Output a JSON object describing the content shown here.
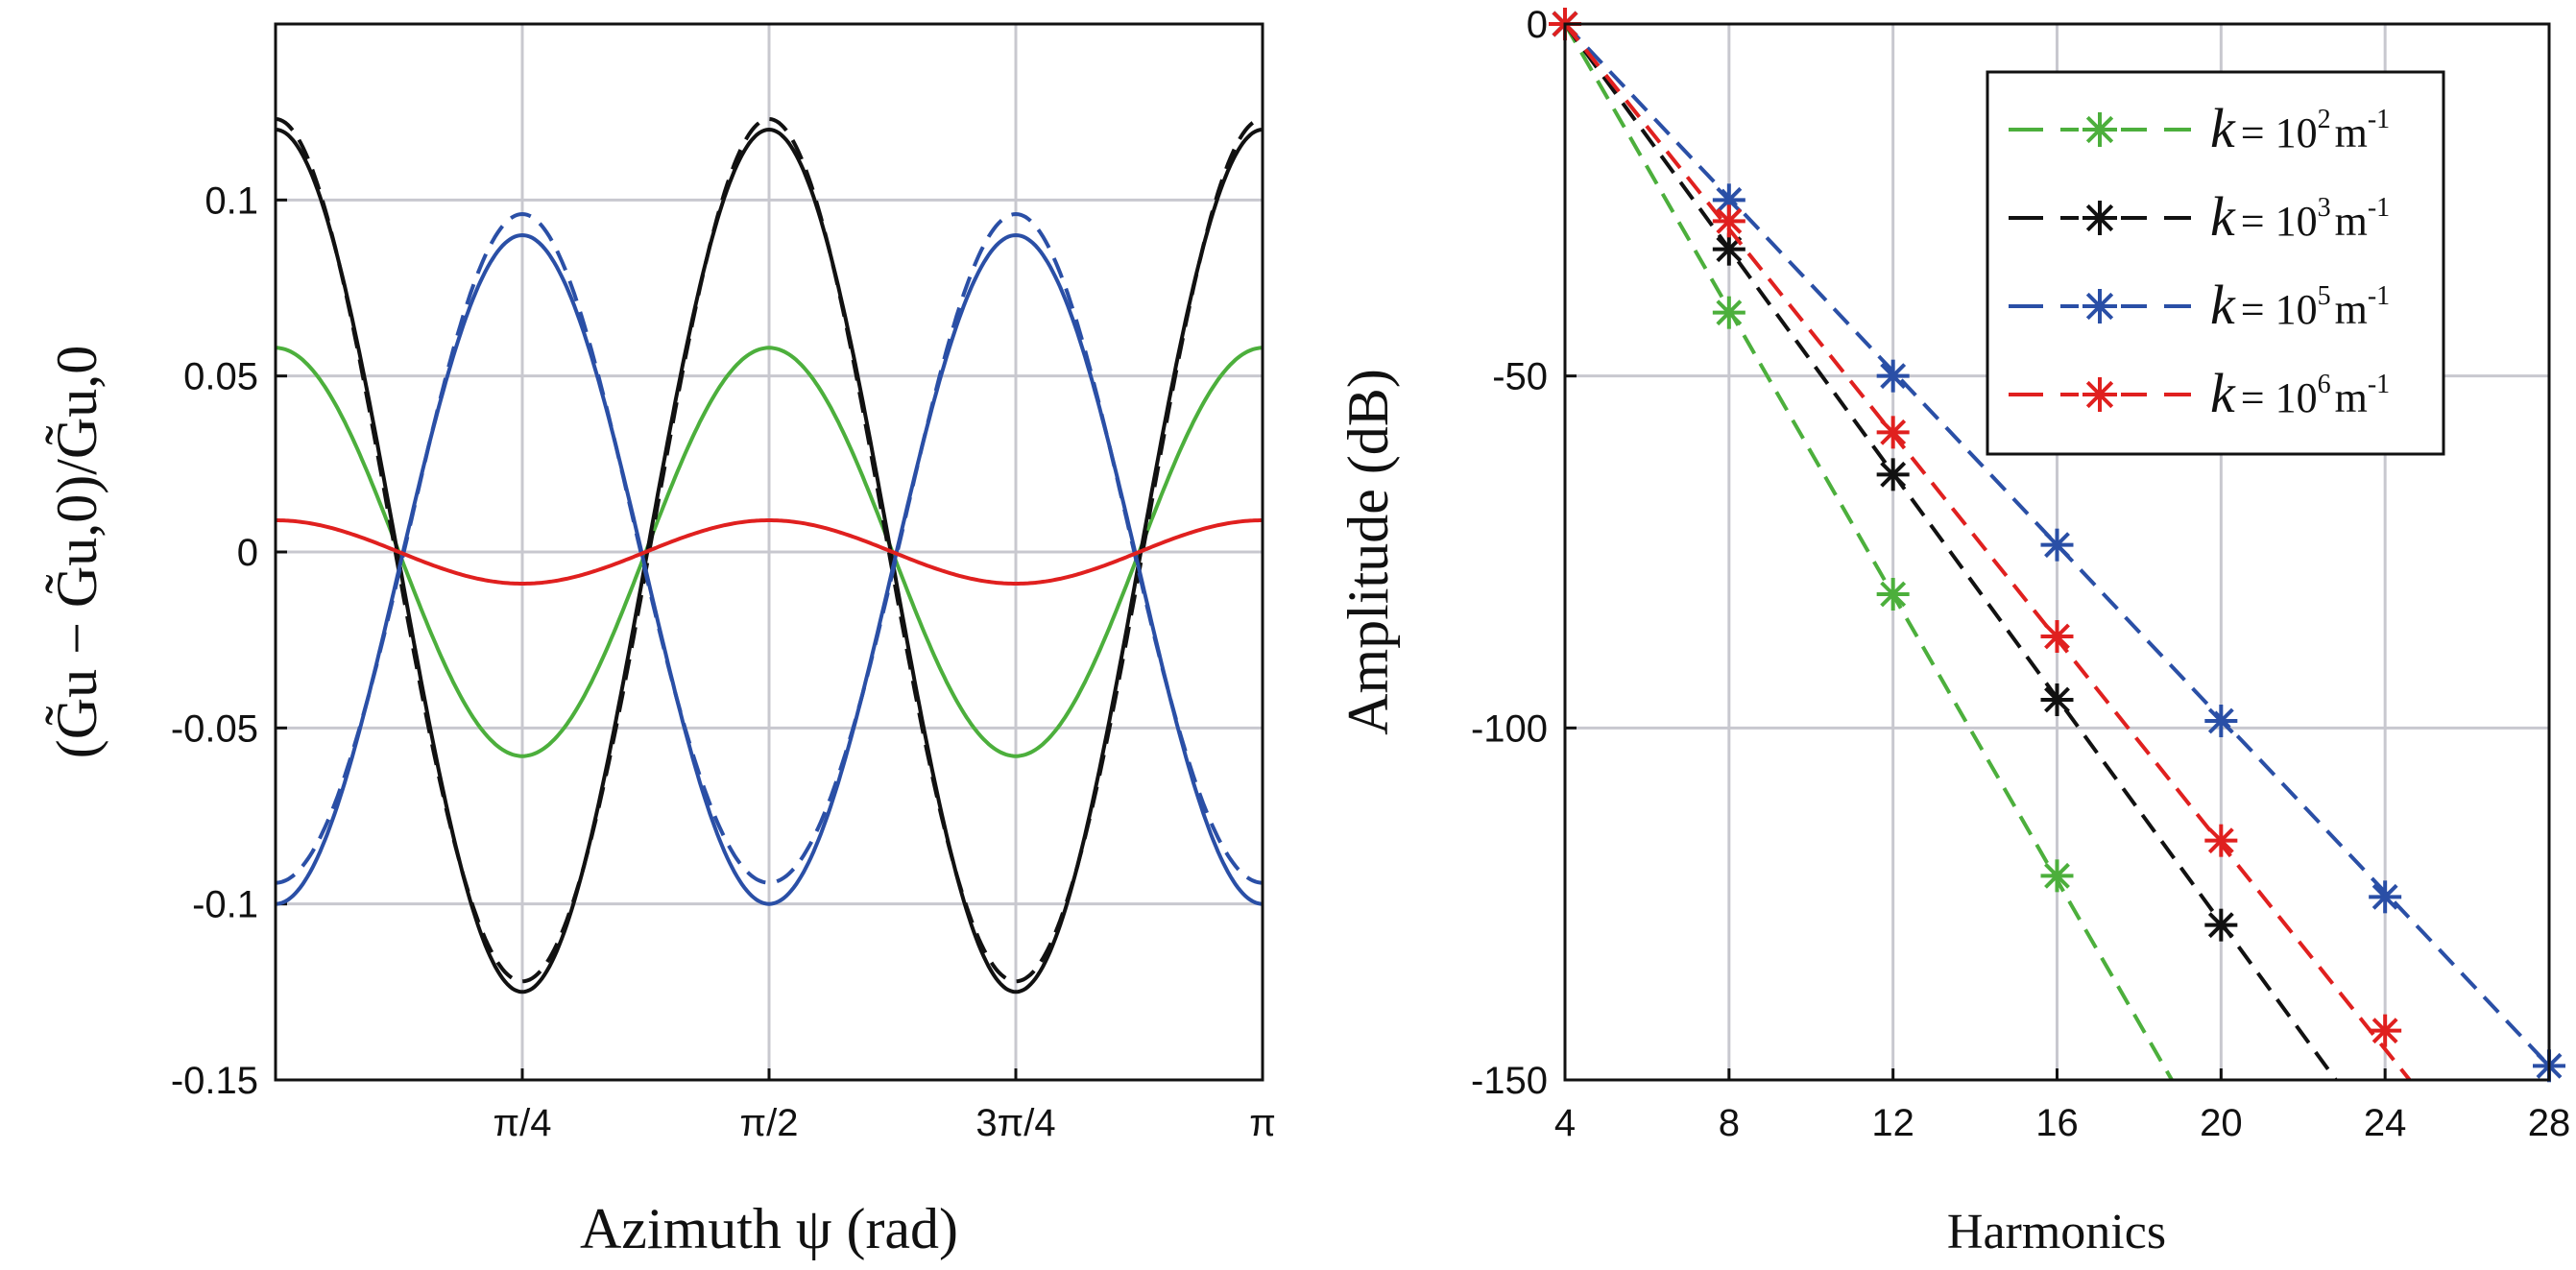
{
  "chart_data": [
    {
      "type": "line",
      "title": "",
      "xlabel": "Azimuth ψ (rad)",
      "ylabel": "(G̃u − G̃u,0)/G̃u,0",
      "xlim": [
        0,
        3.14159
      ],
      "ylim": [
        -0.15,
        0.15
      ],
      "xticks": [
        {
          "value": 0.7854,
          "label": "π/4"
        },
        {
          "value": 1.5708,
          "label": "π/2"
        },
        {
          "value": 2.3562,
          "label": "3π/4"
        },
        {
          "value": 3.14159,
          "label": "π"
        }
      ],
      "yticks": [
        {
          "value": 0.1,
          "label": "0.1"
        },
        {
          "value": 0.05,
          "label": "0.05"
        },
        {
          "value": 0,
          "label": "0"
        },
        {
          "value": -0.05,
          "label": "-0.05"
        },
        {
          "value": -0.1,
          "label": "-0.1"
        },
        {
          "value": -0.15,
          "label": "-0.15"
        }
      ],
      "grid": true,
      "series": [
        {
          "name": "k=10² solid",
          "color": "#4caf3c",
          "dash": false,
          "offset": 0,
          "amp": 0.058,
          "amp2": 0
        },
        {
          "name": "k=10³ solid",
          "color": "#111111",
          "dash": false,
          "offset": -0.0025,
          "amp": 0.1225,
          "amp2": 0
        },
        {
          "name": "k=10³ dashed",
          "color": "#111111",
          "dash": true,
          "offset": -0.0025,
          "amp": 0.1225,
          "amp2": 0.003
        },
        {
          "name": "k=10⁵ solid",
          "color": "#2a4fa6",
          "dash": false,
          "offset": -0.005,
          "amp": -0.095,
          "amp2": 0
        },
        {
          "name": "k=10⁵ dashed",
          "color": "#2a4fa6",
          "dash": true,
          "offset": -0.0025,
          "amp": -0.095,
          "amp2": 0.0035
        },
        {
          "name": "k=10⁶ solid",
          "color": "#e0201f",
          "dash": false,
          "offset": 0,
          "amp": 0.009,
          "amp2": 0
        }
      ]
    },
    {
      "type": "line",
      "title": "",
      "xlabel": "Harmonics",
      "ylabel": "Amplitude (dB)",
      "xlim": [
        4,
        28
      ],
      "ylim": [
        -150,
        0
      ],
      "xticks": [
        {
          "value": 4,
          "label": "4"
        },
        {
          "value": 8,
          "label": "8"
        },
        {
          "value": 12,
          "label": "12"
        },
        {
          "value": 16,
          "label": "16"
        },
        {
          "value": 20,
          "label": "20"
        },
        {
          "value": 24,
          "label": "24"
        },
        {
          "value": 28,
          "label": "28"
        }
      ],
      "yticks": [
        {
          "value": 0,
          "label": "0"
        },
        {
          "value": -50,
          "label": "-50"
        },
        {
          "value": -100,
          "label": "-100"
        },
        {
          "value": -150,
          "label": "-150"
        }
      ],
      "grid": true,
      "legend_position": "top-right",
      "series": [
        {
          "name": "k=10²",
          "prefix": "k",
          "eq": "= 10",
          "exp": "2",
          "unit": "m",
          "unitexp": "-1",
          "color": "#4caf3c",
          "x": [
            4,
            8,
            12,
            16
          ],
          "y": [
            0,
            -41,
            -81,
            -121
          ],
          "fit_end": [
            18.8,
            -150
          ]
        },
        {
          "name": "k=10³",
          "prefix": "k",
          "eq": "= 10",
          "exp": "3",
          "unit": "m",
          "unitexp": "-1",
          "color": "#111111",
          "x": [
            4,
            8,
            12,
            16,
            20
          ],
          "y": [
            0,
            -32,
            -64,
            -96,
            -128
          ],
          "fit_end": [
            22.8,
            -150
          ]
        },
        {
          "name": "k=10⁵",
          "prefix": "k",
          "eq": "= 10",
          "exp": "5",
          "unit": "m",
          "unitexp": "-1",
          "color": "#2a4fa6",
          "x": [
            4,
            8,
            12,
            16,
            20,
            24,
            28
          ],
          "y": [
            0,
            -25,
            -50,
            -74,
            -99,
            -124,
            -148
          ],
          "fit_end": [
            28,
            -148
          ]
        },
        {
          "name": "k=10⁶",
          "prefix": "k",
          "eq": "= 10",
          "exp": "6",
          "unit": "m",
          "unitexp": "-1",
          "color": "#e0201f",
          "x": [
            4,
            8,
            12,
            16,
            20,
            24
          ],
          "y": [
            0,
            -28,
            -58,
            -87,
            -116,
            -143
          ],
          "fit_end": [
            24.6,
            -150
          ]
        }
      ]
    }
  ]
}
